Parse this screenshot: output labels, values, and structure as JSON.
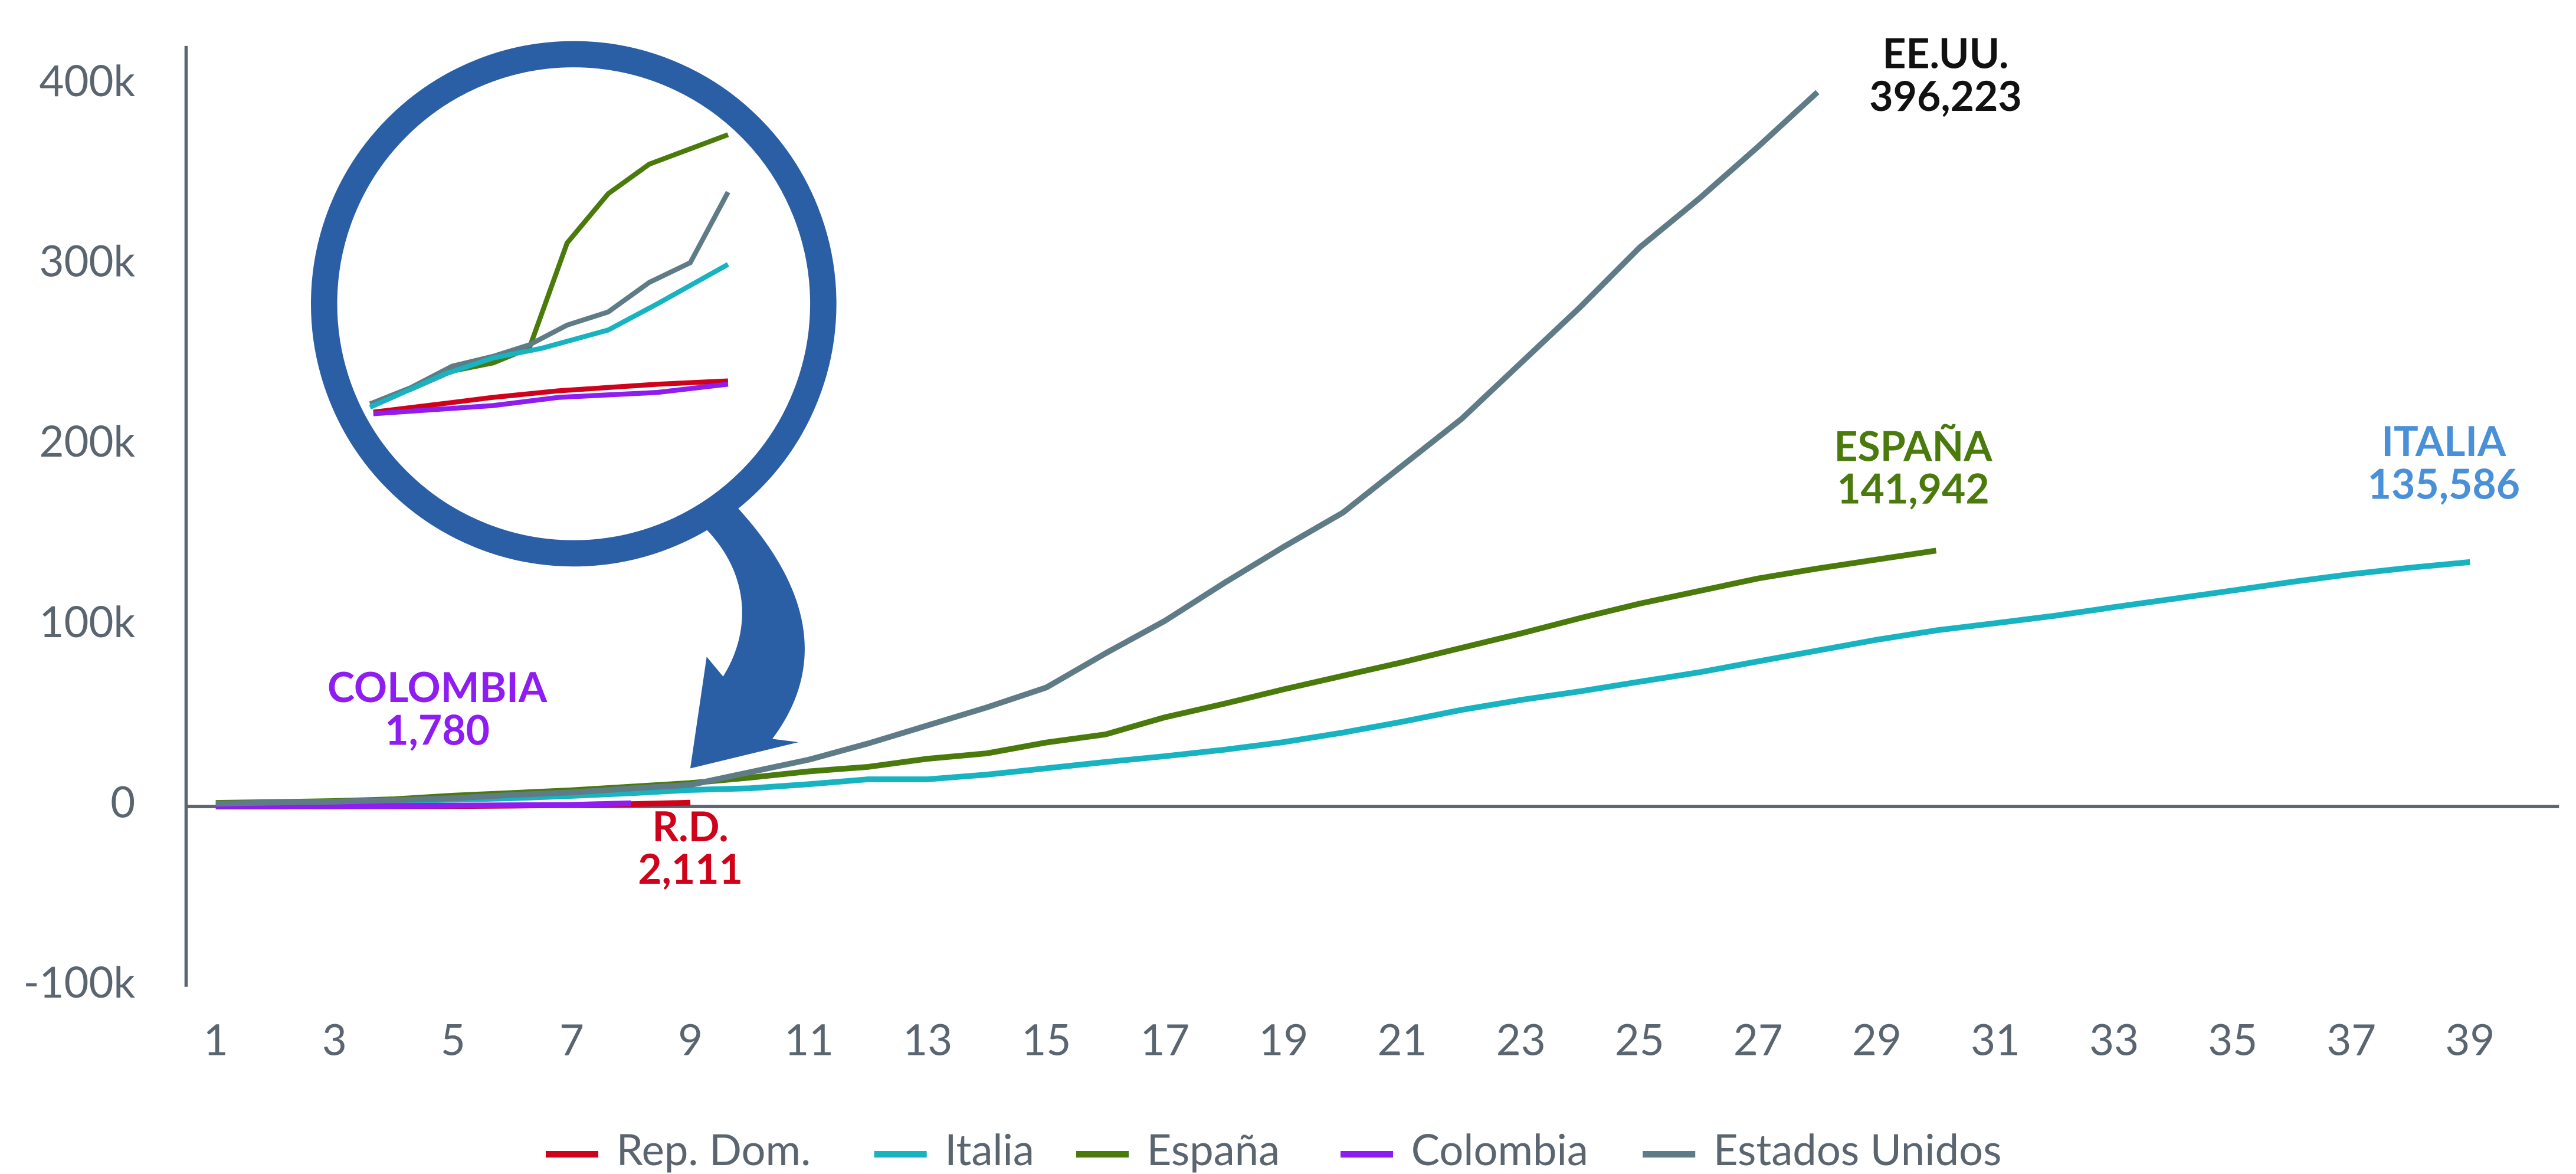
{
  "chart_data": {
    "type": "line",
    "xlim": [
      0.5,
      40.5
    ],
    "xticks": [
      1,
      3,
      5,
      7,
      9,
      11,
      13,
      15,
      17,
      19,
      21,
      23,
      25,
      27,
      29,
      31,
      33,
      35,
      37,
      39
    ],
    "ylim": [
      -100000,
      420000
    ],
    "yticks": [
      {
        "value": -100000,
        "label": "-100k"
      },
      0,
      {
        "value": 100000,
        "label": "100k"
      },
      {
        "value": 200000,
        "label": "200k"
      },
      {
        "value": 300000,
        "label": "300k"
      },
      {
        "value": 400000,
        "label": "400k"
      }
    ],
    "grid": false,
    "legend": "bottom",
    "series": [
      {
        "name": "Rep. Dom.",
        "color": "#d0021b",
        "end_label": "R.D.",
        "label_color": "#d0021b",
        "x": [
          1,
          2,
          3,
          4,
          5,
          6,
          7,
          8,
          9
        ],
        "values": [
          21,
          34,
          72,
          112,
          245,
          488,
          859,
          1284,
          2111
        ],
        "value_labels": [
          null,
          null,
          null,
          null,
          null,
          null,
          null,
          null,
          "2,111"
        ]
      },
      {
        "name": "Italia",
        "color": "#17b3c1",
        "end_label": "ITALIA",
        "label_color": "#4a90d9",
        "x": [
          1,
          2,
          3,
          4,
          5,
          6,
          7,
          8,
          9,
          10,
          11,
          12,
          13,
          14,
          15,
          16,
          17,
          18,
          19,
          20,
          21,
          22,
          23,
          24,
          25,
          26,
          27,
          28,
          29,
          30,
          31,
          32,
          33,
          34,
          35,
          36,
          37,
          38,
          39
        ],
        "values": [
          1500,
          2000,
          2500,
          3000,
          3800,
          4600,
          5900,
          7400,
          9200,
          10100,
          12400,
          15100,
          15100,
          17700,
          21200,
          24700,
          27900,
          31500,
          35700,
          41000,
          47000,
          53600,
          59100,
          63900,
          69200,
          74400,
          80500,
          86500,
          92500,
          97700,
          101700,
          105800,
          110600,
          115200,
          119800,
          124600,
          128900,
          132500,
          135586
        ],
        "value_labels": [
          null,
          null,
          null,
          null,
          null,
          null,
          null,
          null,
          null,
          null,
          null,
          null,
          null,
          null,
          null,
          null,
          null,
          null,
          null,
          null,
          null,
          null,
          null,
          null,
          null,
          null,
          null,
          null,
          null,
          null,
          null,
          null,
          null,
          null,
          null,
          null,
          null,
          null,
          "135,586"
        ]
      },
      {
        "name": "España",
        "color": "#4a7a0c",
        "end_label": "ESPAÑA",
        "label_color": "#4a7a0c",
        "x": [
          1,
          2,
          3,
          4,
          5,
          6,
          7,
          8,
          9,
          10,
          11,
          12,
          13,
          14,
          15,
          16,
          17,
          18,
          19,
          20,
          21,
          22,
          23,
          24,
          25,
          26,
          27,
          28,
          29,
          30
        ],
        "values": [
          2000,
          2500,
          3000,
          4000,
          6000,
          7500,
          9000,
          11000,
          13000,
          16000,
          19500,
          22000,
          26500,
          29500,
          35500,
          40000,
          49500,
          57000,
          65000,
          72500,
          80000,
          88000,
          96000,
          104500,
          112500,
          119500,
          126500,
          132000,
          137000,
          141942
        ],
        "value_labels": [
          null,
          null,
          null,
          null,
          null,
          null,
          null,
          null,
          null,
          null,
          null,
          null,
          null,
          null,
          null,
          null,
          null,
          null,
          null,
          null,
          null,
          null,
          null,
          null,
          null,
          null,
          null,
          null,
          null,
          "141,942"
        ]
      },
      {
        "name": "Colombia",
        "color": "#8f1cf0",
        "end_label": "COLOMBIA",
        "label_color": "#8f1cf0",
        "x": [
          1,
          2,
          3,
          4,
          5,
          6,
          7,
          8
        ],
        "values": [
          65,
          102,
          196,
          306,
          470,
          702,
          906,
          1780
        ],
        "value_labels": [
          null,
          null,
          null,
          null,
          null,
          null,
          null,
          "1,780"
        ]
      },
      {
        "name": "Estados Unidos",
        "color": "#5f7c86",
        "end_label": "EE.UU.",
        "label_color": "#111111",
        "x": [
          1,
          2,
          3,
          4,
          5,
          6,
          7,
          8,
          9,
          10,
          11,
          12,
          13,
          14,
          15,
          16,
          17,
          18,
          19,
          20,
          21,
          22,
          23,
          24,
          25,
          26,
          27,
          28
        ],
        "values": [
          1600,
          2200,
          2700,
          3500,
          4600,
          6400,
          7800,
          10000,
          12000,
          19000,
          26000,
          35000,
          45000,
          55000,
          66000,
          85000,
          103000,
          124000,
          144000,
          163000,
          189000,
          215000,
          246000,
          277000,
          310000,
          337000,
          366000,
          396223
        ],
        "value_labels": [
          null,
          null,
          null,
          null,
          null,
          null,
          null,
          null,
          null,
          null,
          null,
          null,
          null,
          null,
          null,
          null,
          null,
          null,
          null,
          null,
          null,
          null,
          null,
          null,
          null,
          null,
          null,
          "396,223"
        ]
      }
    ]
  }
}
